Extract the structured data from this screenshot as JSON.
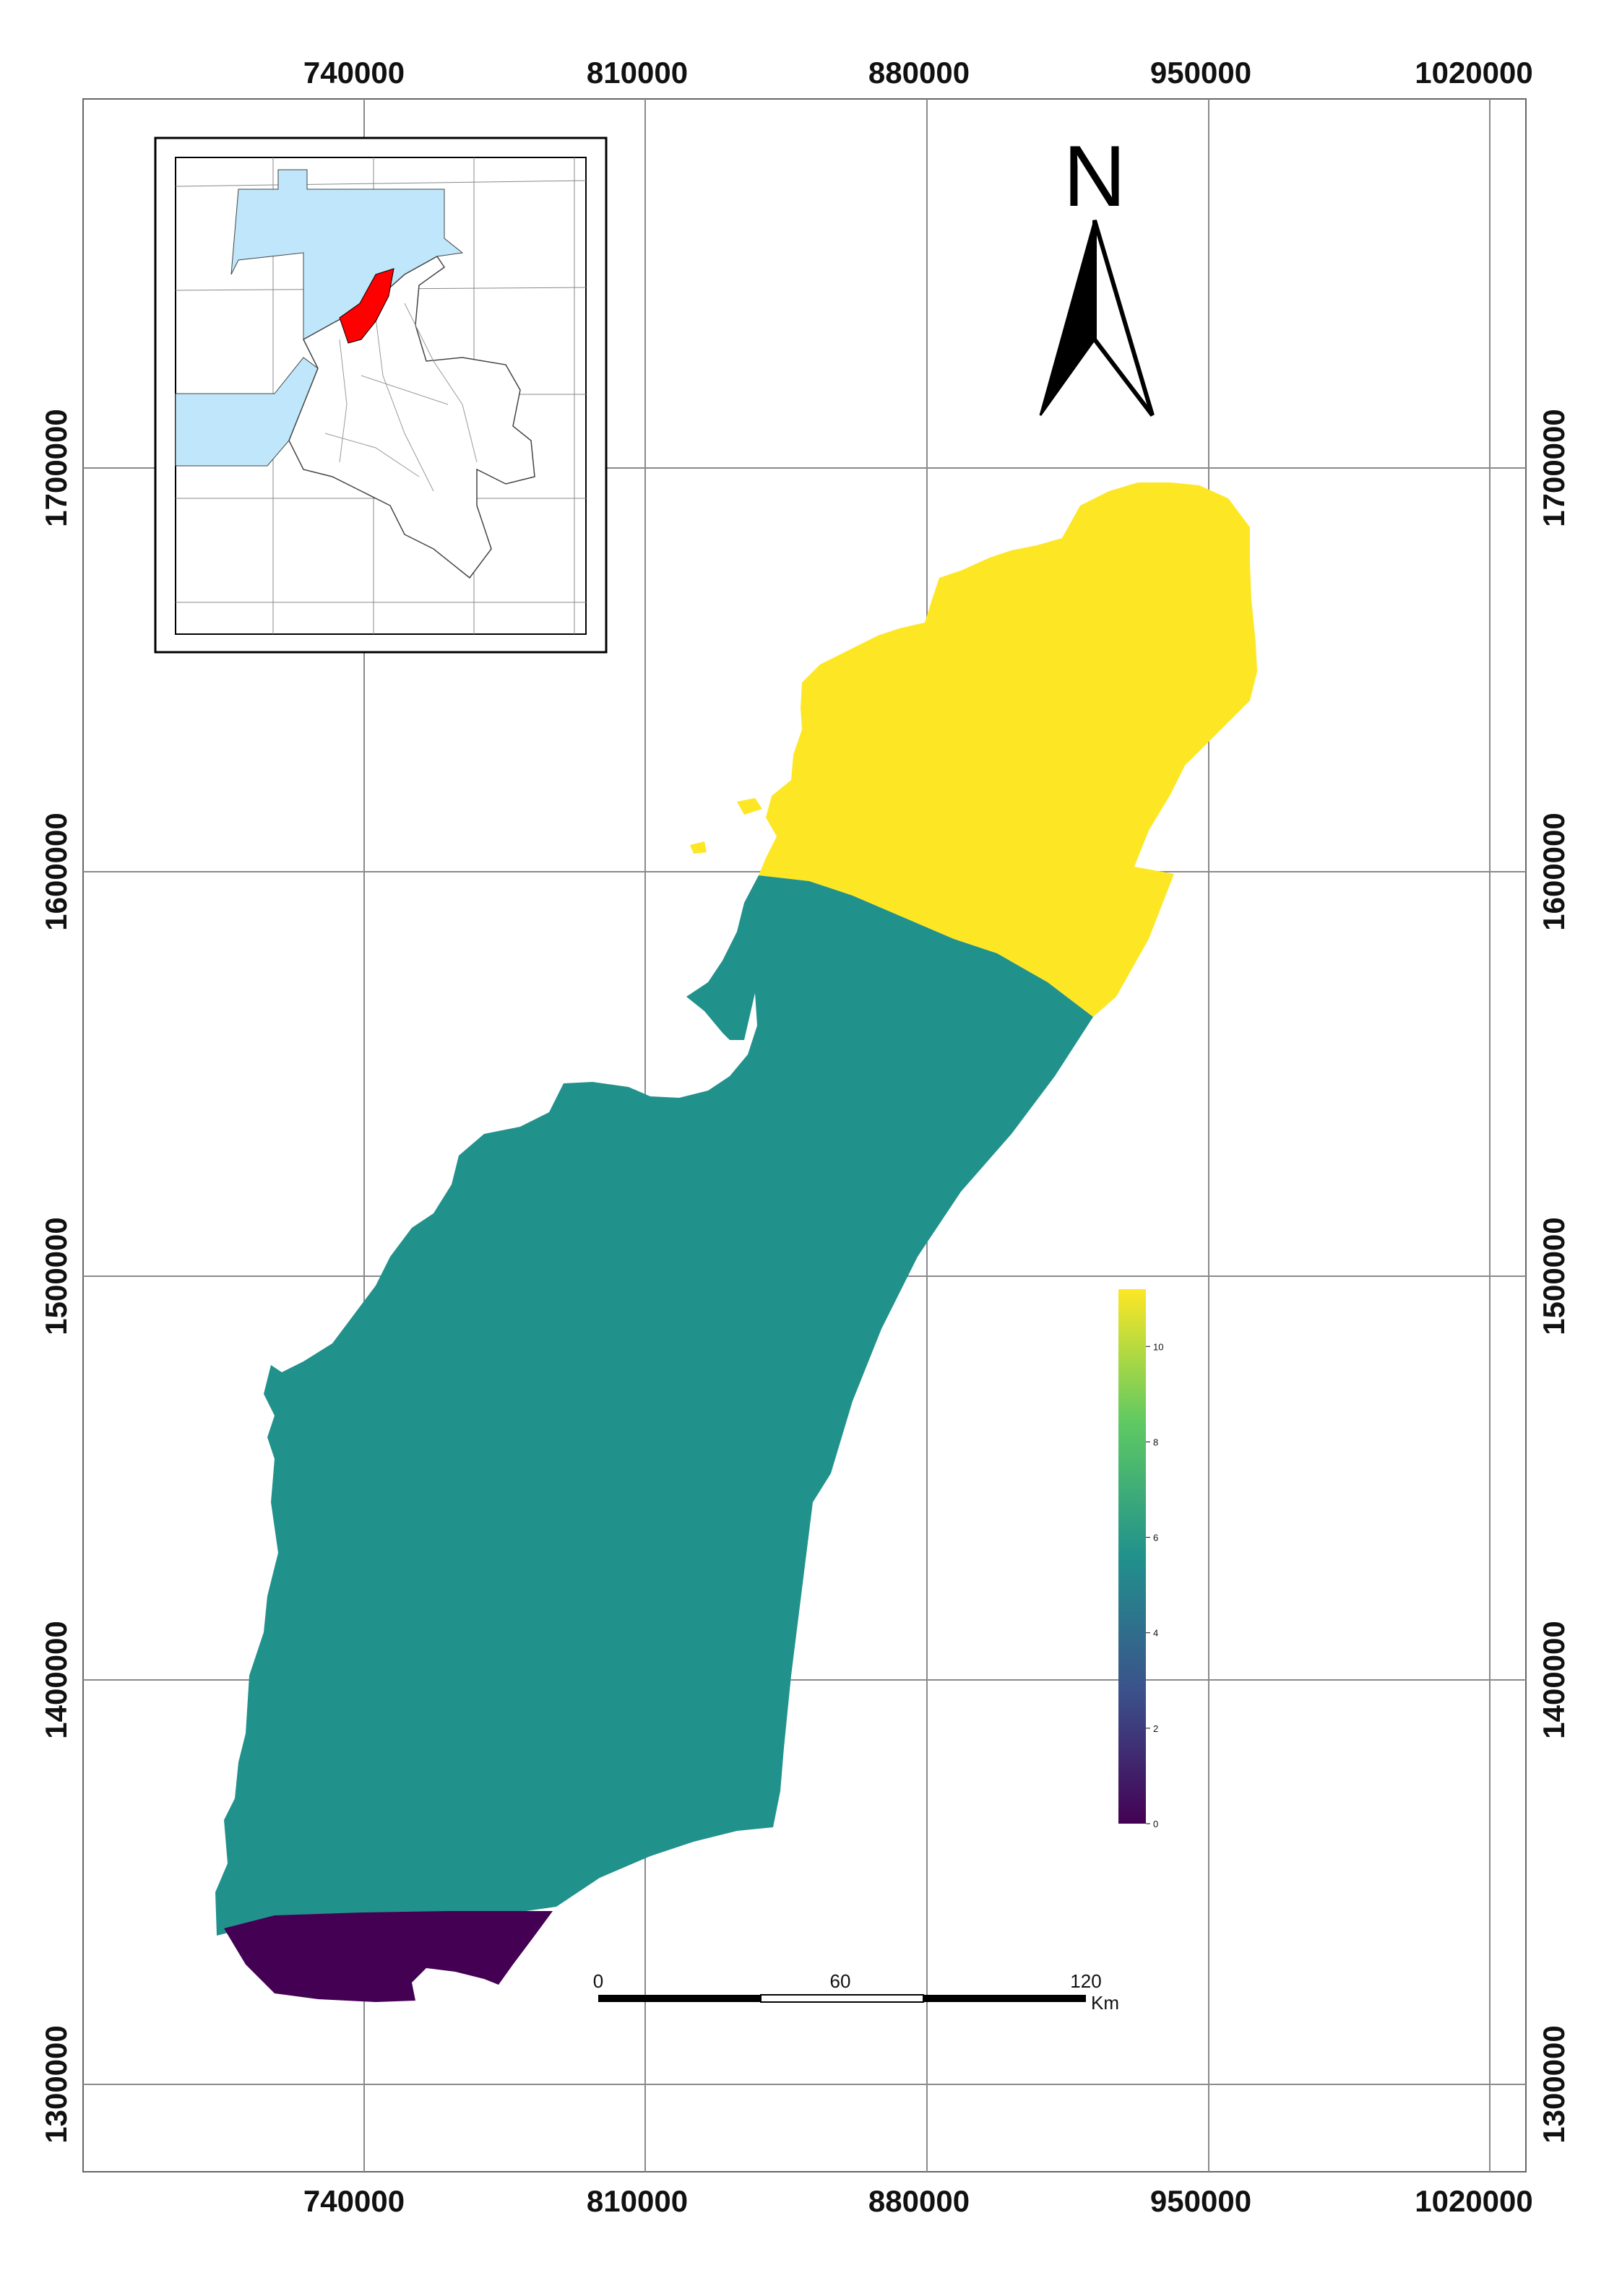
{
  "map": {
    "x_labels": [
      "740000",
      "810000",
      "880000",
      "950000",
      "1020000"
    ],
    "y_labels": [
      "1700000",
      "1600000",
      "1500000",
      "1400000",
      "1300000"
    ],
    "north_label": "N",
    "colors": {
      "zone_north": "#fde725",
      "zone_middle": "#21918c",
      "zone_south": "#440154",
      "inset_sea": "#bfe6fa",
      "inset_highlight": "#ff0000"
    }
  },
  "scalebar": {
    "labels": [
      "0",
      "60",
      "120"
    ],
    "unit": "Km"
  },
  "colorbar": {
    "ticks": [
      "10",
      "8",
      "6",
      "4",
      "2",
      "0"
    ],
    "min": 0,
    "max": 11.2,
    "palette": [
      "#440154",
      "#3b528b",
      "#21918c",
      "#5ec962",
      "#fde725"
    ]
  }
}
